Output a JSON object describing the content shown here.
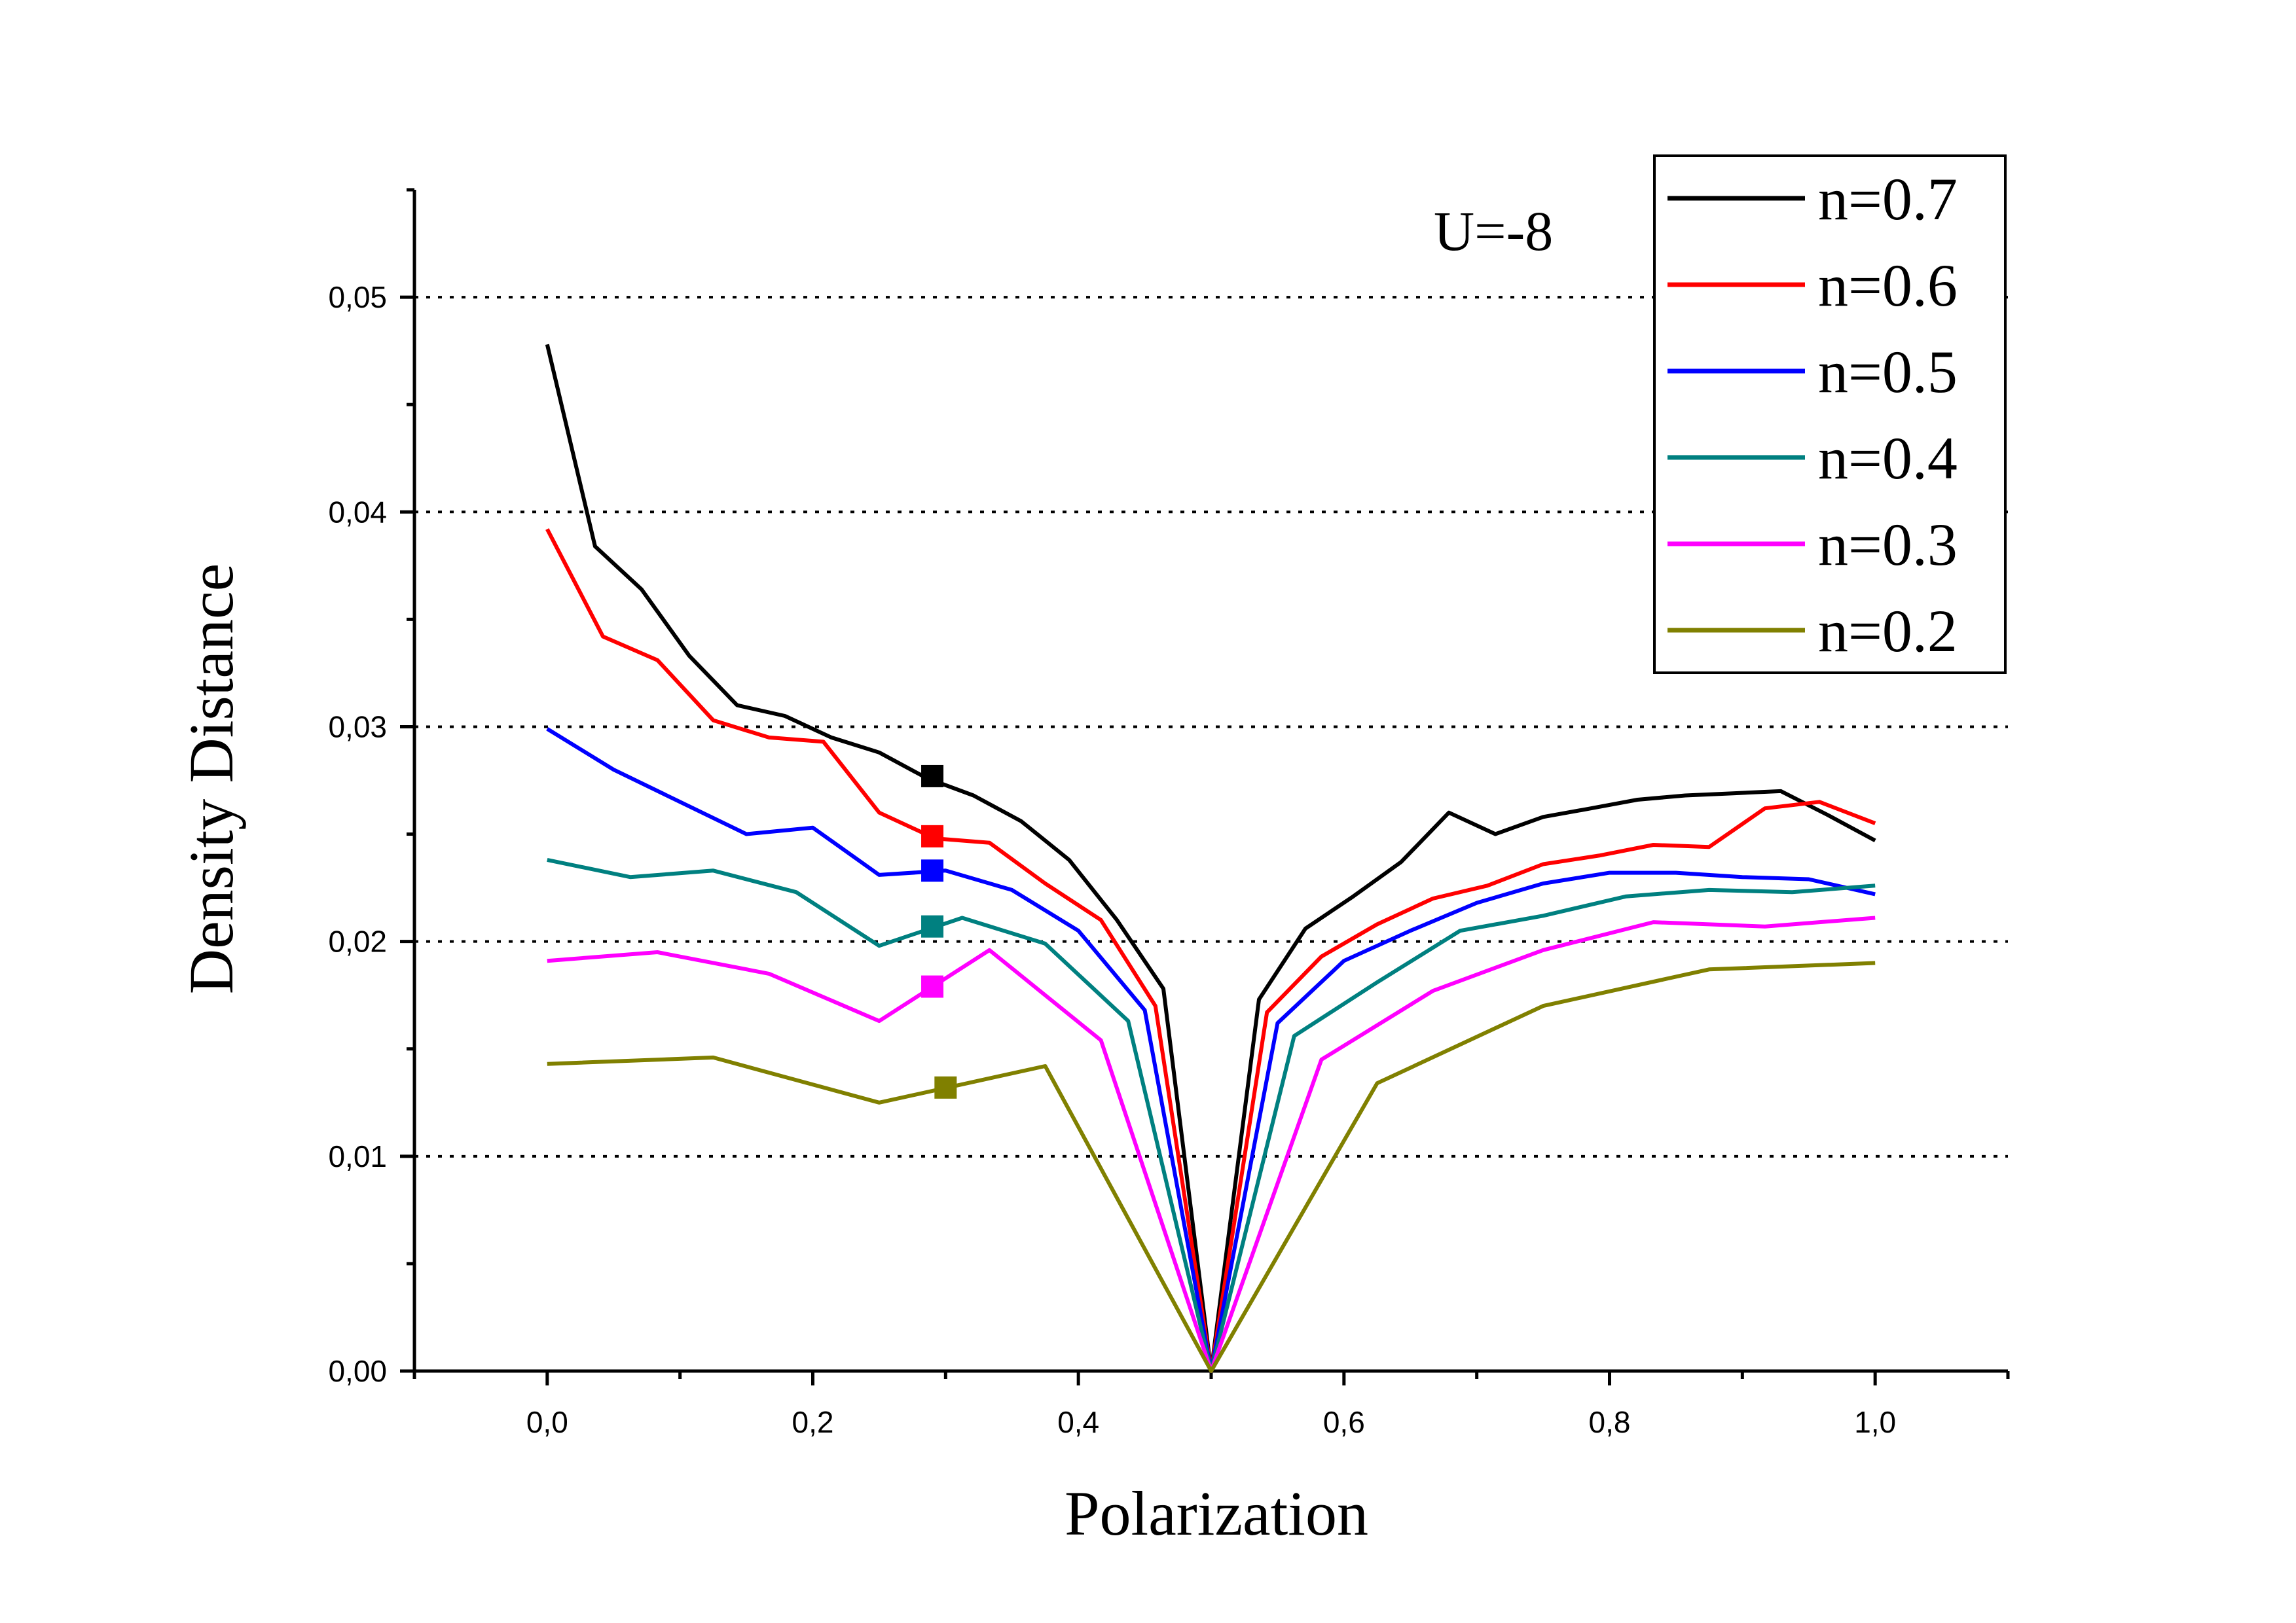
{
  "chart_data": {
    "type": "line",
    "title": "",
    "xlabel": "Polarization",
    "ylabel": "Density Distance",
    "annotation": "U=-8",
    "xlim": [
      -0.1,
      1.1
    ],
    "ylim": [
      0.0,
      0.055
    ],
    "x_ticks": [
      0.0,
      0.2,
      0.4,
      0.6,
      0.8,
      1.0
    ],
    "x_tick_labels": [
      "0,0",
      "0,2",
      "0,4",
      "0,6",
      "0,8",
      "1,0"
    ],
    "y_ticks": [
      0.0,
      0.01,
      0.02,
      0.03,
      0.04,
      0.05
    ],
    "y_tick_labels": [
      "0,00",
      "0,01",
      "0,02",
      "0,03",
      "0,04",
      "0,05"
    ],
    "grid": "horizontal dotted at 0,01 to 0,05",
    "legend_position": "top-right",
    "series": [
      {
        "name": "n=0.7",
        "color": "#000000",
        "x": [
          0.0,
          0.036,
          0.071,
          0.107,
          0.143,
          0.179,
          0.214,
          0.25,
          0.286,
          0.321,
          0.357,
          0.393,
          0.429,
          0.464,
          0.5,
          0.536,
          0.571,
          0.607,
          0.643,
          0.679,
          0.714,
          0.75,
          0.786,
          0.821,
          0.857,
          0.893,
          0.929,
          0.964,
          1.0
        ],
        "y": [
          0.0478,
          0.0384,
          0.0364,
          0.0333,
          0.031,
          0.0305,
          0.0295,
          0.0288,
          0.0276,
          0.0268,
          0.0256,
          0.0238,
          0.021,
          0.0178,
          0.0,
          0.0173,
          0.0206,
          0.0221,
          0.0237,
          0.026,
          0.025,
          0.0258,
          0.0262,
          0.0266,
          0.0268,
          0.0269,
          0.027,
          0.0259,
          0.0247
        ],
        "marker": {
          "x": 0.29,
          "y": 0.0277
        }
      },
      {
        "name": "n=0.6",
        "color": "#ff0000",
        "x": [
          0.0,
          0.042,
          0.083,
          0.125,
          0.167,
          0.208,
          0.25,
          0.292,
          0.333,
          0.375,
          0.417,
          0.458,
          0.5,
          0.542,
          0.583,
          0.625,
          0.667,
          0.708,
          0.75,
          0.792,
          0.833,
          0.875,
          0.917,
          0.958,
          1.0
        ],
        "y": [
          0.0392,
          0.0342,
          0.0331,
          0.0303,
          0.0295,
          0.0293,
          0.026,
          0.0248,
          0.0246,
          0.0227,
          0.021,
          0.017,
          0.0,
          0.0167,
          0.0193,
          0.0208,
          0.022,
          0.0226,
          0.0236,
          0.024,
          0.0245,
          0.0244,
          0.0262,
          0.0265,
          0.0255
        ],
        "marker": {
          "x": 0.29,
          "y": 0.0249
        }
      },
      {
        "name": "n=0.5",
        "color": "#0000ff",
        "x": [
          0.0,
          0.05,
          0.1,
          0.15,
          0.2,
          0.25,
          0.3,
          0.35,
          0.4,
          0.45,
          0.5,
          0.55,
          0.6,
          0.65,
          0.7,
          0.75,
          0.8,
          0.85,
          0.9,
          0.95,
          1.0
        ],
        "y": [
          0.0299,
          0.028,
          0.0265,
          0.025,
          0.0253,
          0.0231,
          0.0233,
          0.0224,
          0.0205,
          0.0168,
          0.0,
          0.0162,
          0.0191,
          0.0205,
          0.0218,
          0.0227,
          0.0232,
          0.0232,
          0.023,
          0.0229,
          0.0222
        ],
        "marker": {
          "x": 0.29,
          "y": 0.0233
        }
      },
      {
        "name": "n=0.4",
        "color": "#008080",
        "x": [
          0.0,
          0.0625,
          0.125,
          0.1875,
          0.25,
          0.3125,
          0.375,
          0.4375,
          0.5,
          0.5625,
          0.625,
          0.6875,
          0.75,
          0.8125,
          0.875,
          0.9375,
          1.0
        ],
        "y": [
          0.0238,
          0.023,
          0.0233,
          0.0223,
          0.0198,
          0.0211,
          0.0199,
          0.0163,
          0.0,
          0.0156,
          0.0181,
          0.0205,
          0.0212,
          0.0221,
          0.0224,
          0.0223,
          0.0226
        ],
        "marker": {
          "x": 0.29,
          "y": 0.0207
        }
      },
      {
        "name": "n=0.3",
        "color": "#ff00ff",
        "x": [
          0.0,
          0.083,
          0.167,
          0.25,
          0.333,
          0.417,
          0.5,
          0.583,
          0.667,
          0.75,
          0.833,
          0.917,
          1.0
        ],
        "y": [
          0.0191,
          0.0195,
          0.0185,
          0.0163,
          0.0196,
          0.0154,
          0.0,
          0.0145,
          0.0177,
          0.0196,
          0.0209,
          0.0207,
          0.0211
        ],
        "marker": {
          "x": 0.29,
          "y": 0.0179
        }
      },
      {
        "name": "n=0.2",
        "color": "#808000",
        "x": [
          0.0,
          0.125,
          0.25,
          0.375,
          0.5,
          0.625,
          0.75,
          0.875,
          1.0
        ],
        "y": [
          0.0143,
          0.0146,
          0.0125,
          0.0142,
          0.0,
          0.0134,
          0.017,
          0.0187,
          0.019
        ],
        "marker": {
          "x": 0.3,
          "y": 0.0132
        }
      }
    ]
  }
}
